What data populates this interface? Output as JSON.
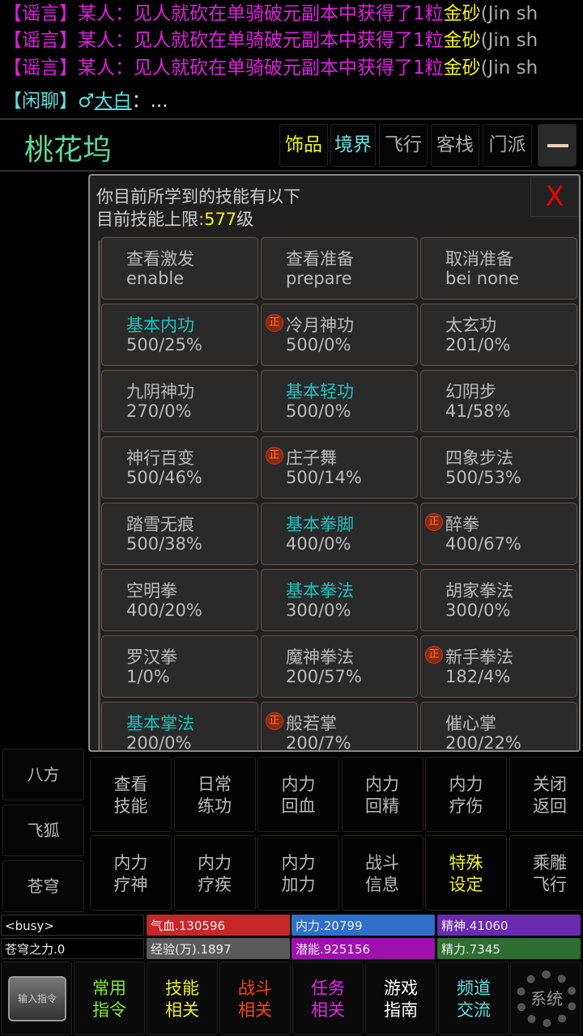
{
  "chat": [
    {
      "tag": "【谣言】",
      "text": "某人：见人就砍在单骑破元副本中获得了1粒",
      "item": "金砂",
      "tail": "(Jin sh"
    },
    {
      "tag": "【谣言】",
      "text": "某人：见人就砍在单骑破元副本中获得了1粒",
      "item": "金砂",
      "tail": "(Jin sh"
    },
    {
      "tag": "【谣言】",
      "text": "某人：见人就砍在单骑破元副本中获得了1粒",
      "item": "金砂",
      "tail": "(Jin sh"
    },
    {
      "tag": "【闲聊】",
      "gender": "♂",
      "name": "大白",
      "rest": "：..."
    }
  ],
  "header": {
    "location": "桃花坞",
    "buttons": [
      "饰品",
      "境界",
      "飞行",
      "客栈",
      "门派"
    ]
  },
  "dialog": {
    "line1": "你目前所学到的技能有以下",
    "line2_prefix": "目前技能上限:",
    "level": "577",
    "line2_suffix": "级",
    "close": "X",
    "badge": "正",
    "actions": [
      {
        "name": "查看激发",
        "value": "enable"
      },
      {
        "name": "查看准备",
        "value": "prepare"
      },
      {
        "name": "取消准备",
        "value": "bei none"
      }
    ],
    "skills": [
      {
        "name": "基本内功",
        "value": "500/25%",
        "basic": true
      },
      {
        "name": "冷月神功",
        "value": "500/0%",
        "badge": true
      },
      {
        "name": "太玄功",
        "value": "201/0%"
      },
      {
        "name": "九阴神功",
        "value": "270/0%"
      },
      {
        "name": "基本轻功",
        "value": "500/0%",
        "basic": true
      },
      {
        "name": "幻阴步",
        "value": "41/58%"
      },
      {
        "name": "神行百变",
        "value": "500/46%"
      },
      {
        "name": "庄子舞",
        "value": "500/14%",
        "badge": true
      },
      {
        "name": "四象步法",
        "value": "500/53%"
      },
      {
        "name": "踏雪无痕",
        "value": "500/38%"
      },
      {
        "name": "基本拳脚",
        "value": "400/0%",
        "basic": true
      },
      {
        "name": "醉拳",
        "value": "400/67%",
        "badge": true
      },
      {
        "name": "空明拳",
        "value": "400/20%"
      },
      {
        "name": "基本拳法",
        "value": "300/0%",
        "basic": true
      },
      {
        "name": "胡家拳法",
        "value": "300/0%"
      },
      {
        "name": "罗汉拳",
        "value": "1/0%"
      },
      {
        "name": "魔神拳法",
        "value": "200/57%"
      },
      {
        "name": "新手拳法",
        "value": "182/4%",
        "badge": true
      },
      {
        "name": "基本掌法",
        "value": "200/0%",
        "basic": true
      },
      {
        "name": "般若掌",
        "value": "200/7%",
        "badge": true
      },
      {
        "name": "催心掌",
        "value": "200/22%"
      }
    ]
  },
  "side": [
    "八方",
    "飞狐",
    "苍穹"
  ],
  "commands": [
    [
      "查看",
      "技能"
    ],
    [
      "日常",
      "练功"
    ],
    [
      "内力",
      "回血"
    ],
    [
      "内力",
      "回精"
    ],
    [
      "内力",
      "疗伤"
    ],
    [
      "关闭",
      "返回"
    ],
    [
      "内力",
      "疗神"
    ],
    [
      "内力",
      "疗疾"
    ],
    [
      "内力",
      "加力"
    ],
    [
      "战斗",
      "信息"
    ],
    [
      "特殊",
      "设定"
    ],
    [
      "乘雕",
      "飞行"
    ]
  ],
  "status": [
    {
      "label": "<busy>",
      "color": "#000000"
    },
    {
      "label": "气血.130596",
      "color": "#c62828"
    },
    {
      "label": "内力.20799",
      "color": "#2f6fc8"
    },
    {
      "label": "精神.41060",
      "color": "#6a2ab0"
    },
    {
      "label": "苍穹之力.0",
      "color": "#000000"
    },
    {
      "label": "经验(万).1897",
      "color": "#5a5a5a"
    },
    {
      "label": "潜能.925156",
      "color": "#a010b0"
    },
    {
      "label": "精力.7345",
      "color": "#2e6e30"
    }
  ],
  "bottom": {
    "input": "输入指令",
    "system": "系统",
    "buttons": [
      {
        "l1": "常用",
        "l2": "指令",
        "color": "#80f020"
      },
      {
        "l1": "技能",
        "l2": "相关",
        "color": "#f0f020"
      },
      {
        "l1": "战斗",
        "l2": "相关",
        "color": "#ff4010"
      },
      {
        "l1": "任务",
        "l2": "相关",
        "color": "#f020f0"
      },
      {
        "l1": "游戏",
        "l2": "指南",
        "color": "#ffffff"
      },
      {
        "l1": "频道",
        "l2": "交流",
        "color": "#60e0e0"
      }
    ]
  }
}
